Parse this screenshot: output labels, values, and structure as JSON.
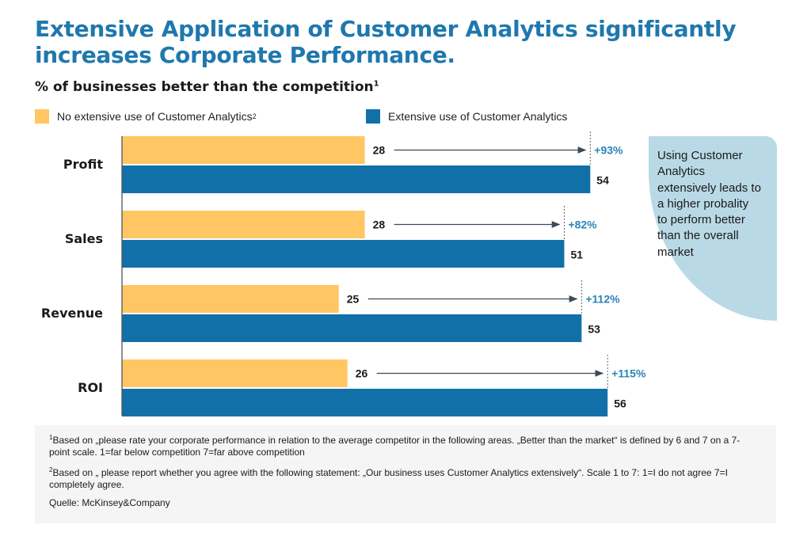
{
  "title": {
    "line1": "Extensive Application of Customer Analytics significantly",
    "line2": "increases Corporate Performance."
  },
  "subtitle": {
    "text": "% of businesses better than the competition",
    "sup": "1"
  },
  "legend": [
    {
      "label": "No extensive use of Customer Analytics",
      "sup": "2",
      "color": "#ffc663"
    },
    {
      "label": "Extensive use of Customer Analytics",
      "sup": "",
      "color": "#1270a8"
    }
  ],
  "chart_data": {
    "type": "bar",
    "orientation": "horizontal",
    "title": "% of businesses better than the competition",
    "categories": [
      "Profit",
      "Sales",
      "Revenue",
      "ROI"
    ],
    "series": [
      {
        "name": "No extensive use of Customer Analytics",
        "color": "#ffc663",
        "values": [
          28,
          28,
          25,
          26
        ]
      },
      {
        "name": "Extensive use of Customer Analytics",
        "color": "#1270a8",
        "values": [
          54,
          51,
          53,
          56
        ]
      }
    ],
    "increase_labels": [
      "+93%",
      "+82%",
      "+112%",
      "+115%"
    ],
    "xlim": [
      0,
      56
    ],
    "grid": false
  },
  "callout": {
    "text": "Using Customer Analytics extensively leads to a higher probality to perform better than the overall market"
  },
  "footnotes": {
    "note1_sup": "1",
    "note1": "Based on „please rate your corporate performance in relation to the average competitor in the following areas. „Better than the market“ is defined by 6 and 7 on a 7-point scale. 1=far below competition 7=far above competition",
    "note2_sup": "2",
    "note2": "Based on „ please report whether you agree with the following statement: „Our business uses Customer Analytics extensively“. Scale 1 to 7: 1=I do not agree 7=I completely agree.",
    "source": "Quelle: McKinsey&Company"
  }
}
